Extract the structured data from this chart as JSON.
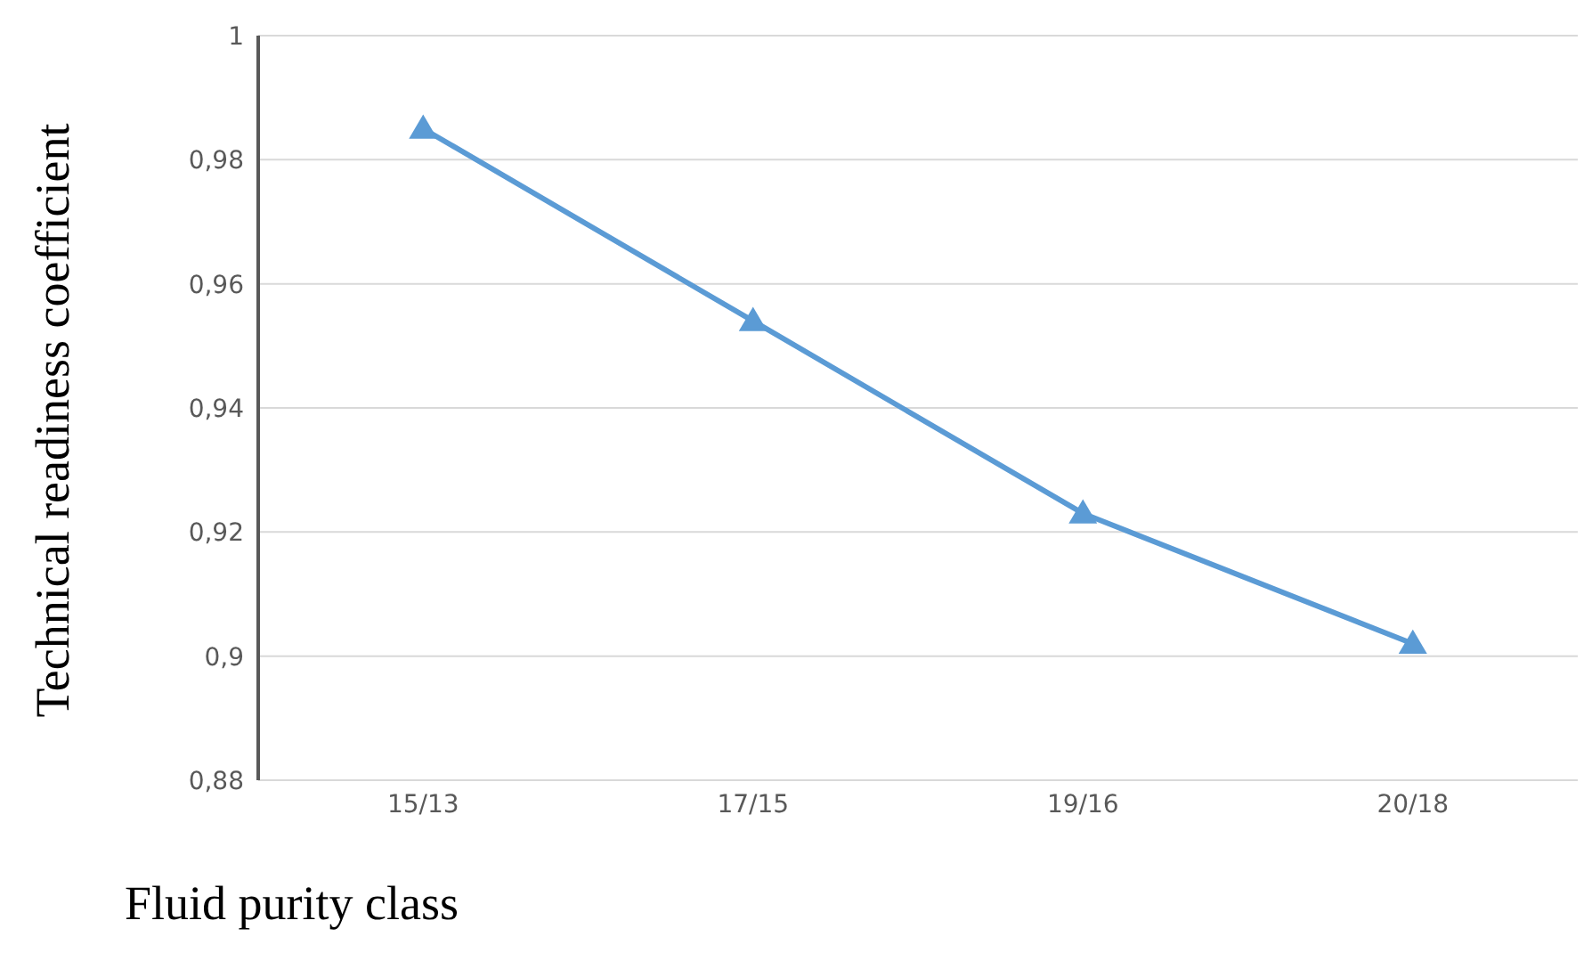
{
  "chart_data": {
    "type": "line",
    "xlabel": "Fluid purity class",
    "ylabel": "Technical readiness coefficient",
    "categories": [
      "15/13",
      "17/15",
      "19/16",
      "20/18"
    ],
    "series": [
      {
        "color": "#5b9bd5",
        "values": [
          0.985,
          0.954,
          0.923,
          0.902
        ]
      }
    ],
    "ylim": [
      0.88,
      1
    ],
    "yticks": [
      {
        "value": 0.88,
        "label": "0,88"
      },
      {
        "value": 0.9,
        "label": "0,9"
      },
      {
        "value": 0.92,
        "label": "0,92"
      },
      {
        "value": 0.94,
        "label": "0,94"
      },
      {
        "value": 0.96,
        "label": "0,96"
      },
      {
        "value": 0.98,
        "label": "0,98"
      },
      1
    ],
    "grid": "y",
    "marker": "triangle",
    "line_style": "solid"
  }
}
